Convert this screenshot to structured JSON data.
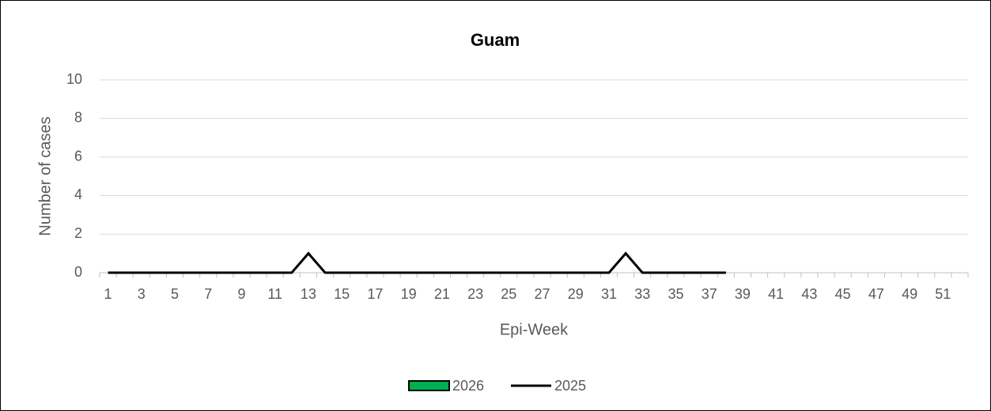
{
  "chart_data": {
    "type": "line",
    "title": "Guam",
    "y_label": "Number of cases",
    "x_label": "Epi-Week",
    "categories": [
      1,
      null,
      3,
      null,
      5,
      null,
      7,
      null,
      9,
      null,
      11,
      null,
      13,
      null,
      15,
      null,
      17,
      null,
      19,
      null,
      21,
      null,
      23,
      null,
      25,
      null,
      27,
      null,
      29,
      null,
      31,
      null,
      33,
      null,
      35,
      null,
      37,
      null,
      39,
      null,
      41,
      null,
      43,
      null,
      45,
      null,
      47,
      null,
      49,
      null,
      51,
      null
    ],
    "series": [
      {
        "name": "2026",
        "type": "bar",
        "color": "#00b050",
        "values": [
          null,
          null,
          null,
          null,
          null,
          null,
          null,
          null,
          null,
          null,
          null,
          null,
          null,
          null,
          null,
          null,
          null,
          null,
          null,
          null,
          null,
          null,
          null,
          null,
          null,
          null,
          null,
          null,
          null,
          null,
          null,
          null,
          null,
          null,
          null,
          null,
          null,
          null,
          null,
          null,
          null,
          null,
          null,
          null,
          null,
          null,
          null,
          null,
          null,
          null,
          null,
          null
        ]
      },
      {
        "name": "2025",
        "type": "line",
        "color": "#000000",
        "values": [
          0,
          0,
          0,
          0,
          0,
          0,
          0,
          0,
          0,
          0,
          0,
          0,
          1,
          0,
          0,
          0,
          0,
          0,
          0,
          0,
          0,
          0,
          0,
          0,
          0,
          0,
          0,
          0,
          0,
          0,
          0,
          1,
          0,
          0,
          0,
          0,
          0,
          0,
          null,
          null,
          null,
          null,
          null,
          null,
          null,
          null,
          null,
          null,
          null,
          null,
          null,
          null
        ]
      }
    ],
    "ylim": [
      0,
      10
    ],
    "yticks": [
      0,
      2,
      4,
      6,
      8,
      10
    ],
    "grid": true,
    "legend": "bottom"
  }
}
